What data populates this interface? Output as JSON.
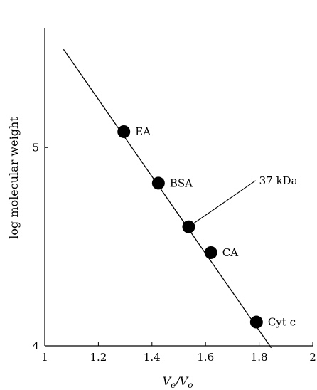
{
  "chart_data": {
    "type": "scatter",
    "title": "",
    "xlabel_main": "V",
    "xlabel_sub1": "e",
    "xlabel_mid": "/V",
    "xlabel_sub2": "o",
    "ylabel": "log molecular weight",
    "xlim": [
      1,
      2
    ],
    "ylim": [
      4,
      5.6
    ],
    "x_ticks": [
      1,
      1.2,
      1.4,
      1.6,
      1.8,
      2
    ],
    "x_tick_labels": [
      "1",
      "1.2",
      "1.4",
      "1.6",
      "1.8",
      "2"
    ],
    "y_ticks": [
      4,
      5
    ],
    "y_tick_labels": [
      "4",
      "5"
    ],
    "grid": false,
    "points": [
      {
        "label": "EA",
        "x": 1.295,
        "y": 5.08
      },
      {
        "label": "BSA",
        "x": 1.424,
        "y": 4.82
      },
      {
        "label": "",
        "x": 1.537,
        "y": 4.6
      },
      {
        "label": "CA",
        "x": 1.62,
        "y": 4.47
      },
      {
        "label": "Cyt c",
        "x": 1.79,
        "y": 4.12
      }
    ],
    "fit_line": {
      "x": [
        1.07,
        1.845
      ],
      "y": [
        5.495,
        3.99
      ]
    },
    "annotation": {
      "text": "37 kDa",
      "x": 1.537,
      "y": 4.6,
      "text_x": 1.8,
      "text_y": 4.815
    }
  }
}
